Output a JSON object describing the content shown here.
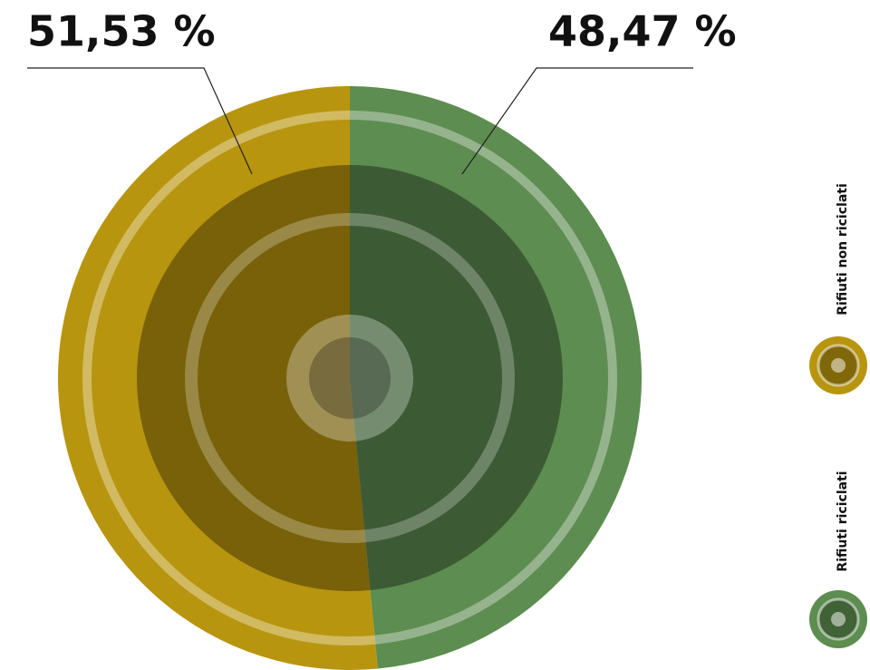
{
  "chart_data": {
    "type": "pie",
    "categories": [
      "Rifiuti non riciclati",
      "Rifiuti riciclati"
    ],
    "values": [
      51.53,
      48.47
    ],
    "value_labels": [
      "51,53 %",
      "48,47 %"
    ],
    "colors": [
      "#b8950f",
      "#5d8d50"
    ]
  }
}
